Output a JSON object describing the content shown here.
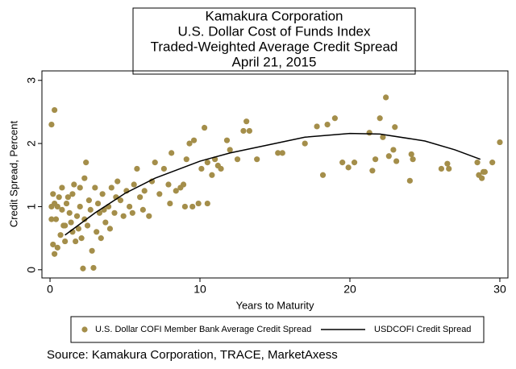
{
  "chart_data": {
    "type": "scatter",
    "title_lines": [
      "Kamakura Corporation",
      "U.S. Dollar Cost of Funds Index",
      "Traded-Weighted Average Credit Spread",
      "April 21, 2015"
    ],
    "x_label": "Years to Maturity",
    "y_label": "Credit Spread, Percent",
    "source": "Source: Kamakura Corporation, TRACE, MarketAxess",
    "xlim": [
      -0.54,
      30.54
    ],
    "ylim": [
      -0.13,
      3.15
    ],
    "xticks": [
      0,
      10,
      20,
      30
    ],
    "yticks": [
      0,
      1,
      2,
      3
    ],
    "grid": false,
    "series": [
      {
        "name": "U.S. Dollar COFI Member Bank Average Credit Spread",
        "mode": "markers",
        "color": "#a48e4a",
        "x": [
          0.1,
          0.3,
          0.1,
          0.2,
          0.2,
          0.3,
          0.5,
          0.4,
          0.6,
          0.8,
          0.9,
          1.0,
          1.2,
          1.3,
          1.5,
          1.6,
          1.8,
          2.0,
          2.1,
          2.2,
          2.3,
          2.4,
          2.5,
          2.6,
          2.8,
          2.9,
          3.0,
          3.1,
          3.3,
          3.5,
          3.7,
          3.9,
          4.1,
          4.3,
          4.5,
          4.7,
          4.9,
          5.1,
          5.3,
          5.6,
          5.8,
          6.0,
          6.3,
          6.6,
          6.8,
          7.0,
          7.3,
          7.6,
          7.9,
          8.1,
          8.4,
          8.7,
          9.0,
          9.1,
          9.3,
          9.6,
          9.9,
          10.1,
          10.3,
          10.5,
          10.8,
          11.0,
          11.4,
          11.8,
          12.0,
          12.5,
          12.9,
          13.1,
          13.3,
          13.8,
          15.2,
          15.5,
          17.0,
          17.8,
          18.2,
          18.5,
          19.0,
          19.5,
          19.9,
          20.3,
          21.3,
          21.5,
          21.7,
          22.0,
          22.2,
          22.4,
          22.6,
          22.9,
          23.0,
          23.1,
          24.1,
          24.0,
          24.2,
          26.1,
          26.5,
          26.6,
          28.5,
          28.6,
          28.8,
          28.9,
          29.0,
          29.5,
          30.0,
          0.1,
          0.3,
          0.5,
          0.7,
          0.8,
          1.0,
          1.1,
          1.4,
          1.5,
          1.7,
          1.9,
          2.0,
          2.3,
          2.7,
          3.2,
          3.4,
          3.6,
          4.0,
          4.4,
          5.5,
          6.2,
          8.0,
          8.9,
          9.5,
          10.5,
          11.2
        ],
        "y": [
          2.3,
          2.53,
          1.0,
          1.2,
          0.4,
          0.25,
          0.35,
          0.8,
          1.15,
          1.3,
          0.7,
          0.45,
          1.15,
          0.9,
          0.6,
          1.35,
          0.85,
          1.0,
          0.5,
          0.02,
          1.45,
          1.7,
          0.7,
          1.1,
          0.3,
          0.03,
          1.3,
          0.6,
          0.9,
          1.2,
          0.75,
          1.0,
          1.3,
          0.9,
          1.4,
          1.1,
          0.85,
          1.25,
          1.0,
          1.35,
          1.6,
          1.15,
          1.25,
          0.85,
          1.4,
          1.7,
          1.2,
          1.6,
          1.35,
          1.85,
          1.25,
          1.3,
          1.0,
          1.75,
          2.0,
          2.05,
          1.05,
          1.6,
          2.25,
          1.7,
          1.5,
          1.75,
          1.6,
          2.05,
          1.9,
          1.75,
          2.2,
          2.35,
          2.2,
          1.75,
          1.85,
          1.85,
          2.0,
          2.27,
          1.5,
          2.3,
          2.4,
          1.7,
          1.62,
          1.7,
          2.17,
          1.57,
          1.75,
          2.4,
          2.1,
          2.73,
          1.8,
          1.9,
          2.26,
          1.72,
          1.83,
          1.41,
          1.75,
          1.6,
          1.68,
          1.6,
          1.7,
          1.5,
          1.45,
          1.55,
          1.55,
          1.7,
          2.02,
          0.8,
          1.05,
          1.0,
          0.55,
          0.95,
          0.7,
          1.05,
          0.75,
          1.2,
          0.45,
          0.65,
          1.3,
          0.8,
          0.95,
          1.05,
          0.5,
          0.95,
          0.65,
          1.15,
          0.9,
          0.95,
          1.05,
          1.35,
          1.0,
          1.05,
          1.65
        ]
      },
      {
        "name": "USDCOFI Credit Spread",
        "mode": "line",
        "color": "#000000",
        "x": [
          1,
          3,
          5,
          7,
          10,
          12,
          15,
          17,
          20,
          22,
          25,
          27,
          28.7
        ],
        "y": [
          0.55,
          0.9,
          1.21,
          1.45,
          1.72,
          1.85,
          2.0,
          2.1,
          2.16,
          2.15,
          2.04,
          1.9,
          1.75
        ]
      }
    ]
  }
}
